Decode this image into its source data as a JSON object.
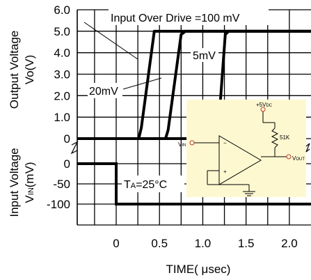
{
  "chart_data": [
    {
      "type": "line",
      "panel": "output",
      "ylabel_line1": "Output Voltage",
      "ylabel_line2": "Vo(V)",
      "xlabel": "TIME( μsec)",
      "x_ticks": [
        "0",
        "0.5",
        "1.0",
        "1.5",
        "2.0"
      ],
      "y_ticks": [
        "6.0",
        "5.0",
        "4.0",
        "3.0",
        "2.0",
        "1.0",
        "0"
      ],
      "xlim": [
        -0.45,
        2.25
      ],
      "ylim": [
        0,
        6
      ],
      "grid": true,
      "series": [
        {
          "name": "100 mV",
          "x": [
            -0.45,
            0.26,
            0.29,
            0.44,
            2.25
          ],
          "y": [
            0,
            0,
            0.5,
            5.0,
            5.0
          ]
        },
        {
          "name": "20mV",
          "x": [
            -0.45,
            0.57,
            0.6,
            0.75,
            0.8,
            2.25
          ],
          "y": [
            0,
            0,
            0.4,
            4.85,
            5.0,
            5.0
          ]
        },
        {
          "name": "5mV",
          "x": [
            -0.45,
            1.15,
            1.18,
            1.26,
            1.3,
            2.25
          ],
          "y": [
            0,
            0,
            0.45,
            4.85,
            5.0,
            5.0
          ]
        }
      ],
      "annotations": {
        "title_pre": "Input Over Drive =",
        "title_value": "100 mV",
        "label_5mv": "5mV",
        "label_20mv": "20mV"
      }
    },
    {
      "type": "line",
      "panel": "input",
      "ylabel_line1": "Input Voltage",
      "ylabel_sub_pre": "V",
      "ylabel_sub": "IN",
      "ylabel_unit": "(mV)",
      "y_ticks": [
        "0",
        "-50",
        "-100"
      ],
      "ylim": [
        -100,
        0
      ],
      "series": [
        {
          "x": [
            -0.45,
            0.0,
            0.0,
            2.25
          ],
          "y": [
            0,
            0,
            -100,
            -100
          ]
        }
      ],
      "annotation": {
        "ta_pre": "T",
        "ta_sub": "A",
        "ta_post": "=25°C"
      }
    }
  ],
  "circuit": {
    "supply": "+5V",
    "supply_sub": "DC",
    "resistor": "51K",
    "in_pre": "V",
    "in_sub": "IN",
    "out_pre": "V",
    "out_sub": "OUT",
    "minus": "−",
    "plus": "+",
    "background": "#fdf8d0"
  }
}
